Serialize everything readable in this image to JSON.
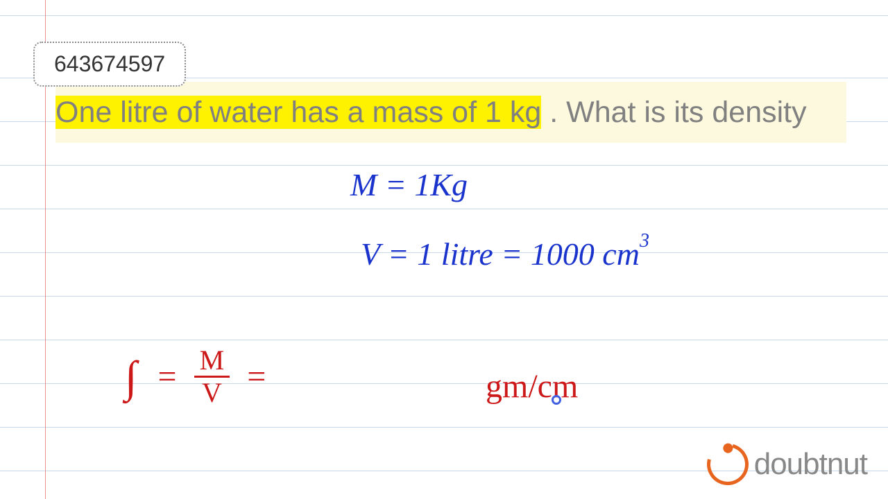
{
  "page": {
    "background_color": "#ffffff",
    "margin_line_color": "#e89090",
    "ruled_line_color": "#c8d8e8"
  },
  "id_box": {
    "value": "643674597",
    "text_color": "#333333",
    "border_color": "#888888"
  },
  "question": {
    "prefix_highlight": "One litre of water has a mass of 1 kg",
    "suffix": " . What is its density",
    "text_color": "#808080",
    "highlight_color": "#fff200",
    "background_color": "#fdf9de",
    "font_size": 43
  },
  "handwriting_blue": {
    "color": "#1933cc",
    "line1": "M = 1Kg",
    "line2_prefix": "V = 1  litre  =  1000 cm",
    "line2_sup": "3",
    "font_size": 46
  },
  "handwriting_red": {
    "color": "#cc1818",
    "rho": "∫",
    "eq1": "=",
    "frac_top": "M",
    "frac_bot": "V",
    "eq2": "=",
    "units": "gm/cm",
    "font_size": 48
  },
  "cursor": {
    "color": "#4060e0"
  },
  "logo": {
    "text": "doubtnut",
    "brand_color": "#e8651f",
    "text_color": "#888888"
  }
}
